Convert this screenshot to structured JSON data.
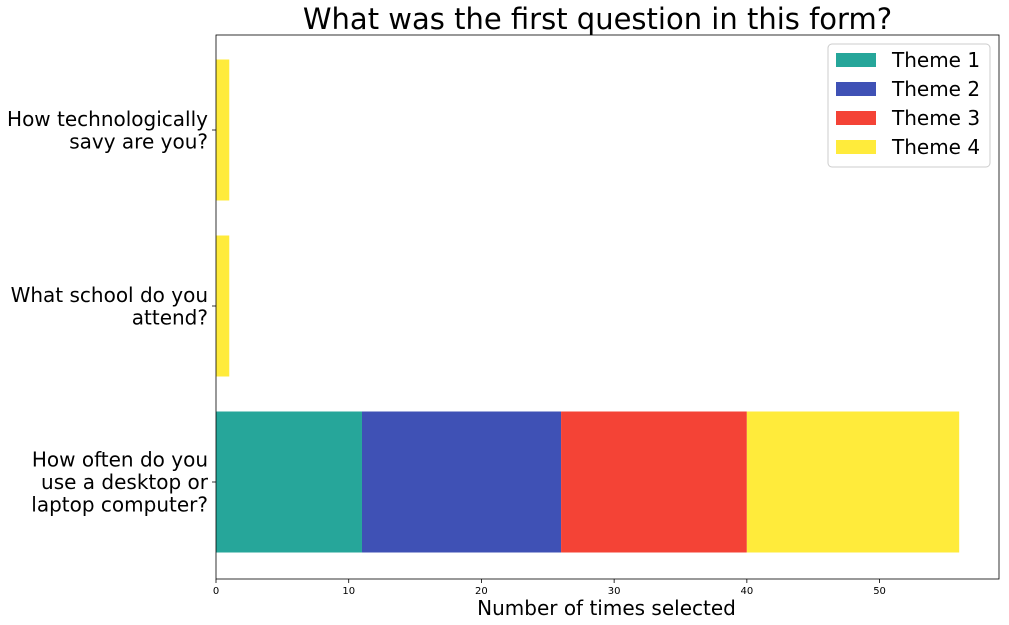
{
  "colors": {
    "theme1": "#26a69a",
    "theme2": "#3f51b5",
    "theme3": "#f44336",
    "theme4": "#ffeb3b"
  },
  "chart_data": {
    "type": "bar",
    "orientation": "horizontal",
    "stacked": true,
    "title": "What was the first question in this form?",
    "xlabel": "Number of times selected",
    "ylabel": "",
    "xlim": [
      0,
      59
    ],
    "xticks": [
      0,
      10,
      20,
      30,
      40,
      50
    ],
    "categories": [
      [
        "How technologically",
        "savy are you?"
      ],
      [
        "What school do you",
        "attend?"
      ],
      [
        "How often do you",
        "use a desktop or",
        "laptop computer?"
      ]
    ],
    "series": [
      {
        "name": "Theme 1",
        "color": "#26a69a",
        "values": [
          0,
          0,
          11
        ]
      },
      {
        "name": "Theme 2",
        "color": "#3f51b5",
        "values": [
          0,
          0,
          15
        ]
      },
      {
        "name": "Theme 3",
        "color": "#f44336",
        "values": [
          0,
          0,
          14
        ]
      },
      {
        "name": "Theme 4",
        "color": "#ffeb3b",
        "values": [
          1,
          1,
          16
        ]
      }
    ],
    "legend_position": "top-right",
    "grid": false
  }
}
